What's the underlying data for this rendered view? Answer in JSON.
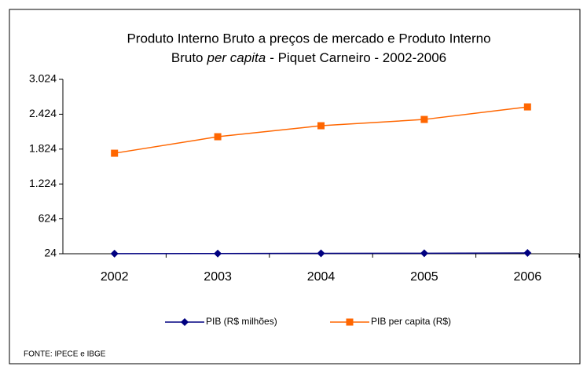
{
  "chart_data": {
    "type": "line",
    "title": {
      "line1": "Produto Interno Bruto a preços de mercado e   Produto Interno",
      "line2_start": "Bruto",
      "line2_italic": "per capita",
      "line2_end": "- Piquet Carneiro - 2002-2006"
    },
    "categories": [
      "2002",
      "2003",
      "2004",
      "2005",
      "2006"
    ],
    "series": [
      {
        "name": "PIB (R$ milhões)",
        "color": "#000080",
        "marker": "diamond",
        "values": [
          25,
          28,
          31,
          33,
          37
        ]
      },
      {
        "name": "PIB per capita (R$)",
        "color": "#ff6600",
        "marker": "square",
        "values": [
          1753,
          2037,
          2226,
          2334,
          2550
        ]
      }
    ],
    "ylim": [
      24,
      3024
    ],
    "yticks": [
      24,
      624,
      {
        "value": 1224,
        "label": "1.224"
      },
      {
        "value": 1824,
        "label": "1.824"
      },
      {
        "value": 2424,
        "label": "2.424"
      },
      {
        "value": 3024,
        "label": "3.024"
      }
    ],
    "grid": false,
    "legend": "bottom",
    "source": "FONTE: IPECE e IBGE"
  }
}
